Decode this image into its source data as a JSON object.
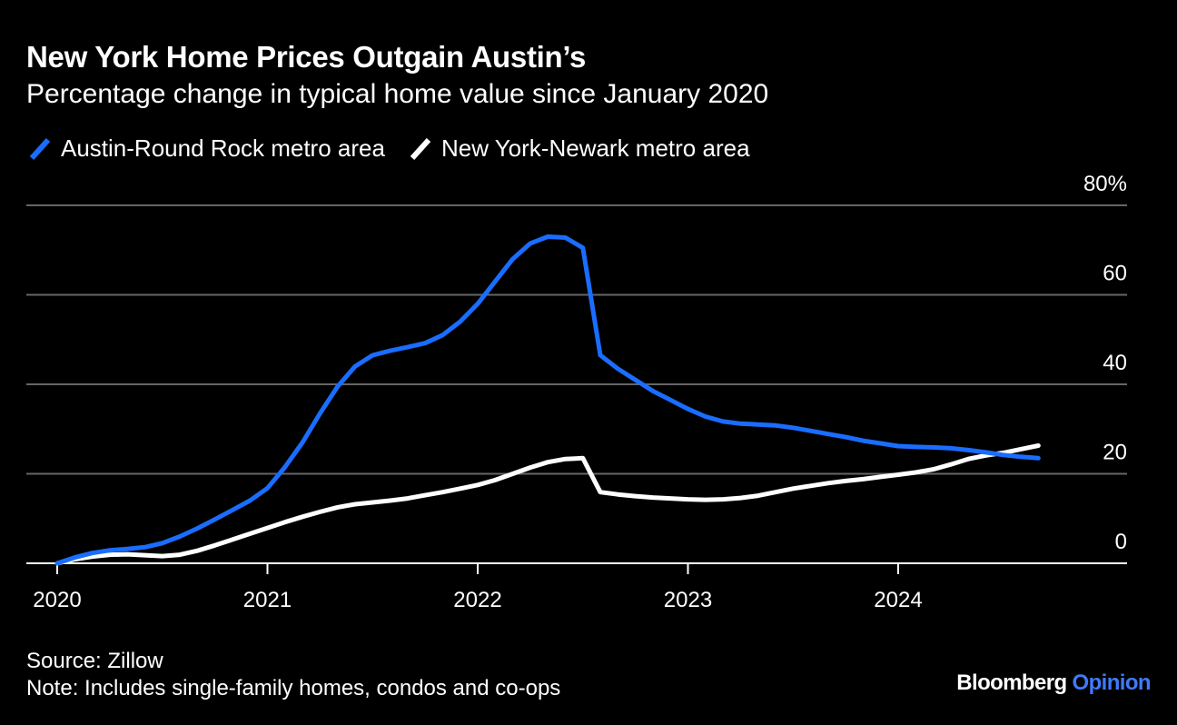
{
  "title": "New York Home Prices Outgain Austin’s",
  "subtitle": "Percentage change in typical home value since January 2020",
  "source": "Source: Zillow",
  "note": "Note: Includes single-family homes, condos and co-ops",
  "brand": {
    "name": "Bloomberg",
    "section": "Opinion",
    "section_color": "#3e7bfa"
  },
  "colors": {
    "background": "#000000",
    "grid": "#666666",
    "text": "#ffffff"
  },
  "chart_data": {
    "type": "line",
    "title": "New York Home Prices Outgain Austin’s",
    "subtitle": "Percentage change in typical home value since January 2020",
    "xlabel": "",
    "ylabel": "",
    "x_ticks": [
      "2020",
      "2021",
      "2022",
      "2023",
      "2024"
    ],
    "y_ticks": [
      0,
      20,
      40,
      60,
      80
    ],
    "y_tick_labels": [
      "0",
      "20",
      "40",
      "60",
      "80%"
    ],
    "ylim": [
      0,
      80
    ],
    "xlim": [
      "2020-01",
      "2025-01"
    ],
    "grid": true,
    "legend_position": "top-left",
    "series": [
      {
        "name": "Austin-Round Rock metro area",
        "color": "#1a6dff",
        "x": [
          "2020-01",
          "2020-02",
          "2020-03",
          "2020-04",
          "2020-05",
          "2020-06",
          "2020-07",
          "2020-08",
          "2020-09",
          "2020-10",
          "2020-11",
          "2020-12",
          "2021-01",
          "2021-02",
          "2021-03",
          "2021-04",
          "2021-05",
          "2021-06",
          "2021-07",
          "2021-08",
          "2021-09",
          "2021-10",
          "2021-11",
          "2021-12",
          "2022-01",
          "2022-02",
          "2022-03",
          "2022-04",
          "2022-05",
          "2022-06",
          "2022-07",
          "2022-08",
          "2022-09",
          "2022-10",
          "2022-11",
          "2022-12",
          "2023-01",
          "2023-02",
          "2023-03",
          "2023-04",
          "2023-05",
          "2023-06",
          "2023-07",
          "2023-08",
          "2023-09",
          "2023-10",
          "2023-11",
          "2023-12",
          "2024-01",
          "2024-02",
          "2024-03",
          "2024-04",
          "2024-05",
          "2024-06",
          "2024-07",
          "2024-08",
          "2024-09"
        ],
        "values": [
          0,
          1.3,
          2.3,
          2.9,
          3.2,
          3.6,
          4.5,
          6.0,
          7.8,
          9.8,
          11.9,
          14.0,
          16.8,
          21.5,
          27.0,
          33.5,
          39.5,
          44.0,
          46.5,
          47.5,
          48.3,
          49.2,
          51.0,
          54.0,
          58.0,
          63.0,
          68.0,
          71.5,
          73.0,
          72.8,
          70.5,
          46.5,
          43.5,
          41.0,
          38.5,
          36.5,
          34.5,
          32.8,
          31.7,
          31.2,
          31.0,
          30.8,
          30.3,
          29.6,
          28.9,
          28.2,
          27.4,
          26.8,
          26.2,
          26.0,
          25.9,
          25.7,
          25.3,
          24.8,
          24.2,
          23.8,
          23.5
        ]
      },
      {
        "name": "New York-Newark metro area",
        "color": "#ffffff",
        "x": [
          "2020-01",
          "2020-02",
          "2020-03",
          "2020-04",
          "2020-05",
          "2020-06",
          "2020-07",
          "2020-08",
          "2020-09",
          "2020-10",
          "2020-11",
          "2020-12",
          "2021-01",
          "2021-02",
          "2021-03",
          "2021-04",
          "2021-05",
          "2021-06",
          "2021-07",
          "2021-08",
          "2021-09",
          "2021-10",
          "2021-11",
          "2021-12",
          "2022-01",
          "2022-02",
          "2022-03",
          "2022-04",
          "2022-05",
          "2022-06",
          "2022-07",
          "2022-08",
          "2022-09",
          "2022-10",
          "2022-11",
          "2022-12",
          "2023-01",
          "2023-02",
          "2023-03",
          "2023-04",
          "2023-05",
          "2023-06",
          "2023-07",
          "2023-08",
          "2023-09",
          "2023-10",
          "2023-11",
          "2023-12",
          "2024-01",
          "2024-02",
          "2024-03",
          "2024-04",
          "2024-05",
          "2024-06",
          "2024-07",
          "2024-08",
          "2024-09"
        ],
        "values": [
          0,
          0.9,
          1.5,
          1.9,
          2.0,
          1.8,
          1.6,
          1.9,
          2.8,
          4.0,
          5.3,
          6.6,
          7.9,
          9.2,
          10.4,
          11.5,
          12.5,
          13.2,
          13.6,
          14.0,
          14.5,
          15.2,
          15.9,
          16.7,
          17.5,
          18.6,
          20.0,
          21.4,
          22.6,
          23.3,
          23.5,
          15.9,
          15.4,
          15.0,
          14.7,
          14.5,
          14.3,
          14.2,
          14.3,
          14.6,
          15.1,
          15.9,
          16.7,
          17.3,
          17.9,
          18.4,
          18.8,
          19.3,
          19.8,
          20.3,
          21.0,
          22.1,
          23.3,
          24.1,
          24.7,
          25.5,
          26.3
        ]
      }
    ]
  }
}
